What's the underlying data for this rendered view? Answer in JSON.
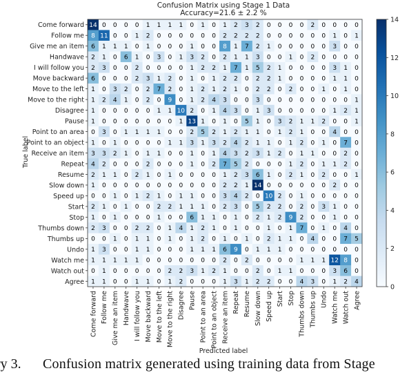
{
  "chart_data": {
    "type": "heatmap",
    "title": "Confusion Matrix using Stage 1 Data",
    "subtitle": "Accuracy=21.6 ± 2.2 %",
    "xlabel": "Predicted label",
    "ylabel": "True label",
    "colormap": "Blues",
    "colorbar": {
      "min": 0,
      "max": 14,
      "ticks": [
        0,
        2,
        4,
        6,
        8,
        10,
        12,
        14
      ]
    },
    "labels": [
      "Come forward",
      "Follow me",
      "Give me an item",
      "Handwave",
      "I will follow you",
      "Move backward",
      "Move to the left",
      "Move to the right",
      "Disagree",
      "Pause",
      "Point to an area",
      "Point to an object",
      "Receive an item",
      "Repeat",
      "Resume",
      "Slow down",
      "Speed up",
      "Start",
      "Stop",
      "Thumbs down",
      "Thumbs up",
      "Undo",
      "Watch me",
      "Watch out",
      "Agree"
    ],
    "matrix": [
      [
        14,
        0,
        0,
        0,
        0,
        1,
        1,
        1,
        1,
        0,
        1,
        0,
        1,
        2,
        3,
        2,
        0,
        0,
        0,
        0,
        2,
        0,
        0,
        0,
        0
      ],
      [
        8,
        11,
        0,
        0,
        1,
        2,
        0,
        0,
        0,
        0,
        0,
        0,
        2,
        2,
        2,
        2,
        0,
        0,
        0,
        0,
        0,
        0,
        1,
        0,
        1
      ],
      [
        6,
        1,
        1,
        1,
        0,
        1,
        0,
        0,
        0,
        1,
        0,
        0,
        8,
        1,
        7,
        2,
        1,
        0,
        0,
        0,
        0,
        0,
        3,
        0,
        0
      ],
      [
        2,
        1,
        0,
        6,
        1,
        0,
        3,
        0,
        1,
        3,
        2,
        0,
        2,
        1,
        1,
        3,
        0,
        0,
        1,
        0,
        2,
        0,
        0,
        0,
        0
      ],
      [
        2,
        3,
        0,
        0,
        2,
        0,
        0,
        0,
        0,
        1,
        2,
        2,
        1,
        7,
        1,
        5,
        2,
        1,
        0,
        0,
        0,
        0,
        3,
        1,
        0
      ],
      [
        6,
        0,
        0,
        0,
        2,
        3,
        1,
        2,
        0,
        1,
        0,
        1,
        2,
        2,
        0,
        2,
        2,
        1,
        0,
        0,
        0,
        0,
        1,
        1,
        0
      ],
      [
        1,
        0,
        3,
        2,
        0,
        2,
        7,
        2,
        0,
        1,
        2,
        1,
        2,
        1,
        0,
        2,
        2,
        0,
        2,
        0,
        0,
        1,
        0,
        1,
        0
      ],
      [
        1,
        2,
        4,
        1,
        0,
        2,
        0,
        9,
        0,
        1,
        2,
        4,
        3,
        0,
        0,
        3,
        0,
        0,
        0,
        0,
        0,
        0,
        0,
        0,
        1
      ],
      [
        1,
        0,
        0,
        0,
        0,
        0,
        1,
        1,
        10,
        2,
        0,
        1,
        4,
        3,
        0,
        1,
        3,
        0,
        0,
        0,
        0,
        0,
        1,
        2,
        1
      ],
      [
        1,
        0,
        0,
        0,
        0,
        0,
        0,
        0,
        1,
        13,
        1,
        0,
        1,
        0,
        5,
        1,
        0,
        3,
        2,
        1,
        1,
        2,
        0,
        0,
        1
      ],
      [
        0,
        3,
        0,
        1,
        1,
        1,
        1,
        0,
        0,
        2,
        5,
        2,
        1,
        2,
        1,
        1,
        0,
        1,
        2,
        1,
        0,
        0,
        4,
        0,
        0
      ],
      [
        1,
        0,
        1,
        0,
        0,
        0,
        0,
        1,
        1,
        3,
        1,
        3,
        2,
        4,
        2,
        1,
        1,
        0,
        1,
        2,
        0,
        1,
        0,
        7,
        0
      ],
      [
        3,
        3,
        2,
        1,
        0,
        1,
        1,
        0,
        0,
        1,
        0,
        1,
        4,
        3,
        2,
        3,
        1,
        2,
        0,
        1,
        1,
        0,
        0,
        2,
        0
      ],
      [
        4,
        2,
        0,
        0,
        0,
        2,
        0,
        0,
        0,
        1,
        0,
        2,
        7,
        5,
        2,
        0,
        0,
        0,
        1,
        2,
        0,
        1,
        1,
        2,
        0
      ],
      [
        2,
        1,
        1,
        0,
        2,
        1,
        0,
        1,
        0,
        0,
        0,
        0,
        1,
        2,
        3,
        6,
        1,
        0,
        2,
        1,
        0,
        2,
        0,
        0,
        1
      ],
      [
        1,
        0,
        0,
        0,
        0,
        0,
        0,
        0,
        0,
        0,
        0,
        0,
        2,
        2,
        1,
        14,
        0,
        0,
        0,
        0,
        0,
        0,
        2,
        0,
        0
      ],
      [
        0,
        0,
        1,
        0,
        1,
        2,
        1,
        0,
        1,
        1,
        0,
        0,
        3,
        4,
        2,
        0,
        10,
        2,
        0,
        1,
        0,
        0,
        0,
        0,
        0
      ],
      [
        2,
        1,
        0,
        1,
        0,
        0,
        2,
        2,
        1,
        1,
        1,
        0,
        2,
        3,
        0,
        5,
        2,
        2,
        0,
        2,
        0,
        3,
        1,
        0,
        0
      ],
      [
        1,
        0,
        1,
        0,
        0,
        0,
        1,
        0,
        0,
        6,
        1,
        1,
        0,
        1,
        0,
        2,
        1,
        2,
        9,
        2,
        0,
        0,
        1,
        0,
        0
      ],
      [
        2,
        3,
        0,
        0,
        2,
        2,
        0,
        1,
        4,
        1,
        2,
        1,
        0,
        1,
        0,
        0,
        1,
        0,
        1,
        7,
        0,
        1,
        0,
        4,
        0
      ],
      [
        0,
        0,
        1,
        0,
        1,
        1,
        0,
        1,
        0,
        1,
        2,
        0,
        1,
        0,
        1,
        0,
        2,
        1,
        1,
        0,
        4,
        0,
        0,
        7,
        5
      ],
      [
        1,
        3,
        0,
        0,
        1,
        1,
        0,
        0,
        0,
        1,
        1,
        1,
        6,
        9,
        0,
        1,
        1,
        1,
        0,
        0,
        0,
        0,
        0,
        0,
        0
      ],
      [
        1,
        1,
        1,
        1,
        1,
        0,
        0,
        0,
        0,
        0,
        0,
        0,
        2,
        0,
        2,
        0,
        0,
        0,
        0,
        1,
        1,
        1,
        12,
        8,
        0
      ],
      [
        0,
        1,
        0,
        0,
        0,
        0,
        0,
        2,
        2,
        3,
        1,
        2,
        1,
        0,
        0,
        2,
        0,
        1,
        1,
        0,
        0,
        0,
        3,
        6,
        0
      ],
      [
        1,
        1,
        0,
        0,
        1,
        1,
        0,
        1,
        2,
        0,
        0,
        0,
        1,
        3,
        1,
        2,
        2,
        0,
        0,
        4,
        3,
        0,
        1,
        2,
        4
      ]
    ]
  },
  "caption": {
    "figure_number": "ry 3.",
    "text": "Confusion matrix generated using training data from Stage"
  }
}
